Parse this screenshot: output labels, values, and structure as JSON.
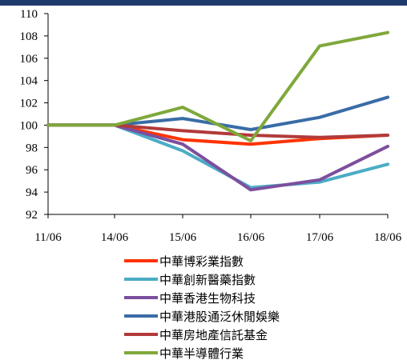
{
  "chart_data": {
    "type": "line",
    "x": [
      "11/06",
      "14/06",
      "15/06",
      "16/06",
      "17/06",
      "18/06"
    ],
    "ylim": [
      92,
      110
    ],
    "yticks": [
      110,
      108,
      106,
      104,
      102,
      100,
      98,
      96,
      94,
      92
    ],
    "grid": false,
    "legend_position": "bottom",
    "series": [
      {
        "name": "中華博彩業指數",
        "color": "#ff3300",
        "values": [
          100.0,
          100.0,
          98.7,
          98.3,
          98.8,
          99.1
        ]
      },
      {
        "name": "中華創新醫藥指數",
        "color": "#4bacc6",
        "values": [
          100.0,
          100.0,
          97.7,
          94.4,
          94.9,
          96.5
        ]
      },
      {
        "name": "中華香港生物科技",
        "color": "#7c4f9e",
        "values": [
          100.0,
          100.0,
          98.3,
          94.2,
          95.1,
          98.1
        ]
      },
      {
        "name": "中華港股通泛休閒娛樂",
        "color": "#3a6ca6",
        "values": [
          100.0,
          100.0,
          100.6,
          99.6,
          100.7,
          102.5
        ]
      },
      {
        "name": "中華房地產信託基金",
        "color": "#b23a3a",
        "values": [
          100.0,
          100.0,
          99.5,
          99.1,
          98.9,
          99.1
        ]
      },
      {
        "name": "中華半導體行業",
        "color": "#7fa83b",
        "values": [
          100.0,
          100.0,
          101.6,
          98.6,
          107.1,
          108.3
        ]
      }
    ]
  }
}
